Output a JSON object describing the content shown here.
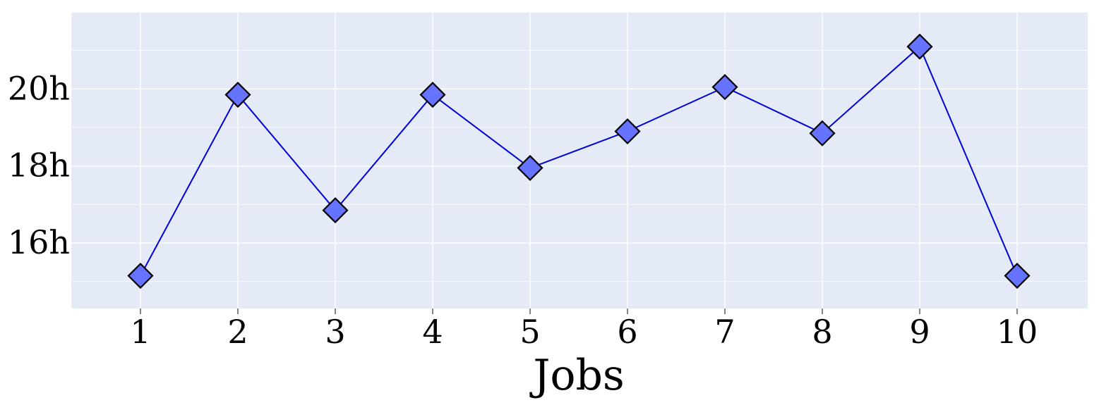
{
  "chart_data": {
    "type": "line",
    "title": "",
    "xlabel": "Jobs",
    "ylabel": "",
    "categories": [
      "1",
      "2",
      "3",
      "4",
      "5",
      "6",
      "7",
      "8",
      "9",
      "10"
    ],
    "series": [
      {
        "values": [
          15.15,
          19.85,
          16.85,
          19.85,
          17.95,
          18.9,
          20.05,
          18.85,
          21.1,
          15.15
        ]
      }
    ],
    "y_ticks": [
      16,
      18,
      20
    ],
    "y_tick_labels": [
      "16h",
      "18h",
      "20h"
    ],
    "ylim": [
      14.3,
      22.0
    ],
    "grid": true,
    "marker": "diamond",
    "colors": {
      "line": "#0000d8",
      "marker_fill": "#6673ff",
      "marker_edge": "#000000",
      "plot_background": "#e5ebf6",
      "grid": "#ffffff"
    }
  }
}
